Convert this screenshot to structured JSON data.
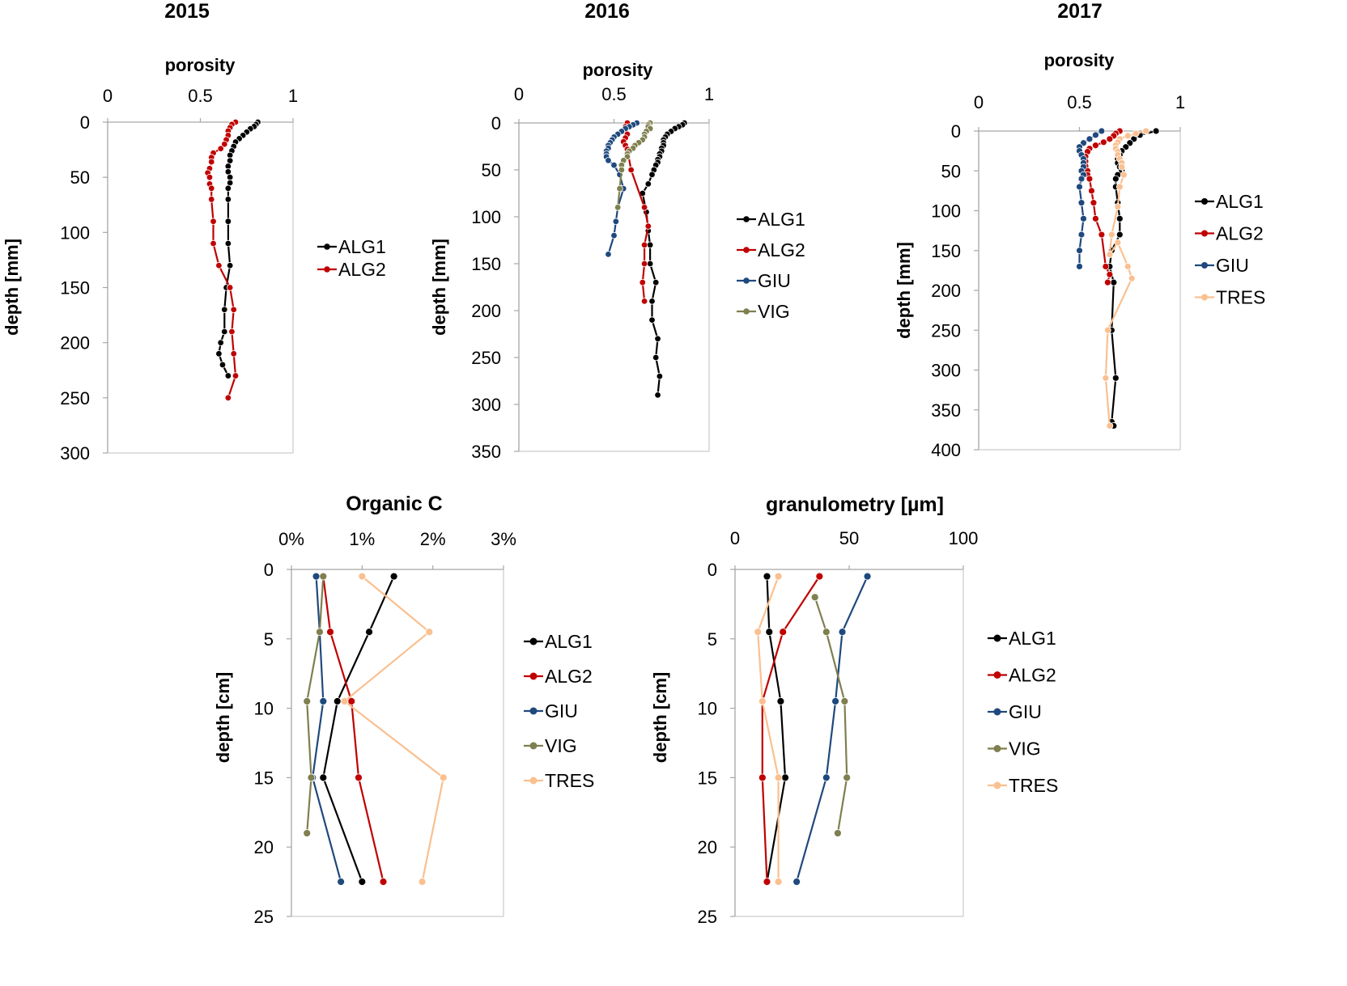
{
  "year_titles": [
    "2015",
    "2016",
    "2017"
  ],
  "chart_data": [
    {
      "type": "line",
      "title": "porosity",
      "xlabel": "porosity",
      "ylabel": "depth [mm]",
      "xlim": [
        0,
        1
      ],
      "xticks": [
        "0",
        "0.5",
        "1"
      ],
      "xtick_values": [
        0,
        0.5,
        1
      ],
      "ylim": [
        0,
        300
      ],
      "yticks": [
        "0",
        "50",
        "100",
        "150",
        "200",
        "250",
        "300"
      ],
      "ytick_values": [
        0,
        50,
        100,
        150,
        200,
        250,
        300
      ],
      "legend_position": "right",
      "series": [
        {
          "name": "ALG1",
          "color": "#000000",
          "x": [
            0.81,
            0.8,
            0.79,
            0.77,
            0.75,
            0.73,
            0.71,
            0.69,
            0.68,
            0.67,
            0.66,
            0.66,
            0.65,
            0.65,
            0.66,
            0.66,
            0.65,
            0.65,
            0.65,
            0.65,
            0.66,
            0.64,
            0.63,
            0.63,
            0.61,
            0.6,
            0.62,
            0.65
          ],
          "y": [
            0,
            2,
            4,
            6,
            9,
            12,
            15,
            18,
            22,
            26,
            30,
            35,
            40,
            45,
            50,
            55,
            60,
            70,
            90,
            110,
            130,
            150,
            170,
            190,
            200,
            210,
            220,
            230
          ]
        },
        {
          "name": "ALG2",
          "color": "#c00000",
          "x": [
            0.69,
            0.67,
            0.66,
            0.65,
            0.65,
            0.64,
            0.63,
            0.61,
            0.57,
            0.56,
            0.56,
            0.55,
            0.54,
            0.55,
            0.55,
            0.56,
            0.56,
            0.57,
            0.57,
            0.6,
            0.66,
            0.68,
            0.67,
            0.68,
            0.69,
            0.65
          ],
          "y": [
            0,
            2,
            5,
            8,
            12,
            16,
            20,
            24,
            28,
            32,
            36,
            42,
            46,
            50,
            56,
            60,
            70,
            90,
            110,
            130,
            150,
            170,
            190,
            210,
            230,
            250
          ]
        }
      ]
    },
    {
      "type": "line",
      "title": "porosity",
      "xlabel": "porosity",
      "ylabel": "depth [mm]",
      "xlim": [
        0,
        1
      ],
      "xticks": [
        "0",
        "0.5",
        "1"
      ],
      "xtick_values": [
        0,
        0.5,
        1
      ],
      "ylim": [
        0,
        350
      ],
      "yticks": [
        "0",
        "50",
        "100",
        "150",
        "200",
        "250",
        "300",
        "350"
      ],
      "ytick_values": [
        0,
        50,
        100,
        150,
        200,
        250,
        300,
        350
      ],
      "legend_position": "right",
      "series": [
        {
          "name": "ALG1",
          "color": "#000000",
          "x": [
            0.87,
            0.86,
            0.84,
            0.82,
            0.8,
            0.78,
            0.77,
            0.76,
            0.76,
            0.76,
            0.75,
            0.75,
            0.74,
            0.74,
            0.73,
            0.73,
            0.72,
            0.71,
            0.7,
            0.68,
            0.65,
            0.67,
            0.68,
            0.69,
            0.69,
            0.72,
            0.7,
            0.7,
            0.73,
            0.72,
            0.74,
            0.73
          ],
          "y": [
            0,
            2,
            4,
            6,
            9,
            12,
            15,
            18,
            21,
            24,
            27,
            30,
            33,
            36,
            39,
            42,
            45,
            50,
            55,
            65,
            75,
            95,
            115,
            130,
            150,
            170,
            190,
            210,
            230,
            250,
            270,
            290
          ]
        },
        {
          "name": "ALG2",
          "color": "#c00000",
          "x": [
            0.57,
            0.56,
            0.56,
            0.57,
            0.56,
            0.55,
            0.56,
            0.57,
            0.59,
            0.66,
            0.68,
            0.66,
            0.66,
            0.65,
            0.66
          ],
          "y": [
            0,
            4,
            8,
            12,
            16,
            20,
            24,
            28,
            50,
            90,
            110,
            130,
            150,
            170,
            190
          ]
        },
        {
          "name": "GIU",
          "color": "#1f497d",
          "x": [
            0.62,
            0.6,
            0.58,
            0.56,
            0.54,
            0.52,
            0.5,
            0.49,
            0.48,
            0.47,
            0.47,
            0.46,
            0.46,
            0.46,
            0.47,
            0.5,
            0.53,
            0.55,
            0.52,
            0.51,
            0.5,
            0.47
          ],
          "y": [
            0,
            2,
            4,
            6,
            9,
            12,
            15,
            18,
            21,
            24,
            27,
            30,
            33,
            36,
            40,
            45,
            55,
            70,
            90,
            105,
            120,
            140
          ]
        },
        {
          "name": "VIG",
          "color": "#7f7f4f",
          "x": [
            0.69,
            0.68,
            0.68,
            0.69,
            0.67,
            0.66,
            0.66,
            0.65,
            0.63,
            0.61,
            0.6,
            0.58,
            0.57,
            0.57,
            0.55,
            0.54,
            0.54,
            0.53,
            0.52
          ],
          "y": [
            0,
            2,
            4,
            6,
            9,
            12,
            15,
            18,
            21,
            24,
            27,
            30,
            33,
            36,
            40,
            45,
            50,
            70,
            90
          ]
        }
      ]
    },
    {
      "type": "line",
      "title": "porosity",
      "xlabel": "porosity",
      "ylabel": "depth [mm]",
      "xlim": [
        0,
        1
      ],
      "xticks": [
        "0",
        "0.5",
        "1"
      ],
      "xtick_values": [
        0,
        0.5,
        1
      ],
      "ylim": [
        0,
        400
      ],
      "yticks": [
        "0",
        "50",
        "100",
        "150",
        "200",
        "250",
        "300",
        "350",
        "400"
      ],
      "ytick_values": [
        0,
        50,
        100,
        150,
        200,
        250,
        300,
        350,
        400
      ],
      "legend_position": "right",
      "series": [
        {
          "name": "ALG1",
          "color": "#000000",
          "x": [
            0.88,
            0.8,
            0.77,
            0.75,
            0.73,
            0.71,
            0.7,
            0.69,
            0.69,
            0.7,
            0.71,
            0.69,
            0.68,
            0.68,
            0.69,
            0.7,
            0.7,
            0.66,
            0.65,
            0.67,
            0.66,
            0.68,
            0.66,
            0.67
          ],
          "y": [
            0,
            5,
            10,
            15,
            20,
            25,
            30,
            35,
            40,
            45,
            50,
            55,
            60,
            70,
            90,
            110,
            130,
            150,
            170,
            190,
            250,
            310,
            365,
            370
          ]
        },
        {
          "name": "ALG2",
          "color": "#c00000",
          "x": [
            0.7,
            0.68,
            0.67,
            0.65,
            0.62,
            0.58,
            0.55,
            0.54,
            0.53,
            0.53,
            0.53,
            0.54,
            0.54,
            0.55,
            0.56,
            0.57,
            0.58,
            0.61,
            0.63,
            0.65,
            0.64
          ],
          "y": [
            0,
            3,
            6,
            10,
            14,
            18,
            22,
            26,
            32,
            38,
            44,
            50,
            55,
            60,
            75,
            90,
            110,
            130,
            170,
            180,
            190
          ]
        },
        {
          "name": "GIU",
          "color": "#1f497d",
          "x": [
            0.61,
            0.58,
            0.55,
            0.52,
            0.5,
            0.5,
            0.51,
            0.52,
            0.52,
            0.52,
            0.51,
            0.52,
            0.51,
            0.5,
            0.51,
            0.52,
            0.51,
            0.5,
            0.5
          ],
          "y": [
            0,
            5,
            10,
            15,
            20,
            25,
            30,
            35,
            40,
            45,
            50,
            55,
            60,
            70,
            90,
            110,
            130,
            150,
            170
          ]
        },
        {
          "name": "TRES",
          "color": "#fac090",
          "x": [
            0.83,
            0.78,
            0.74,
            0.7,
            0.69,
            0.68,
            0.68,
            0.69,
            0.69,
            0.7,
            0.71,
            0.71,
            0.72,
            0.7,
            0.69,
            0.66,
            0.65,
            0.69,
            0.74,
            0.76,
            0.64,
            0.63,
            0.65
          ],
          "y": [
            0,
            3,
            6,
            10,
            14,
            18,
            22,
            26,
            30,
            35,
            40,
            45,
            55,
            70,
            95,
            130,
            155,
            140,
            170,
            185,
            250,
            310,
            370
          ]
        }
      ]
    },
    {
      "type": "line",
      "title": "Organic C",
      "xlabel": "Organic C",
      "ylabel": "depth [cm]",
      "xlim": [
        0,
        3
      ],
      "xticks": [
        "0%",
        "1%",
        "2%",
        "3%"
      ],
      "xtick_values": [
        0,
        1,
        2,
        3
      ],
      "ylim": [
        0,
        25
      ],
      "yticks": [
        "0",
        "5",
        "10",
        "15",
        "20",
        "25"
      ],
      "ytick_values": [
        0,
        5,
        10,
        15,
        20,
        25
      ],
      "legend_position": "right",
      "series": [
        {
          "name": "ALG1",
          "color": "#000000",
          "x": [
            1.45,
            1.1,
            0.65,
            0.45,
            1.0
          ],
          "y": [
            0.5,
            4.5,
            9.5,
            15,
            22.5
          ]
        },
        {
          "name": "ALG2",
          "color": "#c00000",
          "x": [
            0.45,
            0.55,
            0.85,
            0.95,
            1.3
          ],
          "y": [
            0.5,
            4.5,
            9.5,
            15,
            22.5
          ]
        },
        {
          "name": "GIU",
          "color": "#1f497d",
          "x": [
            0.35,
            0.4,
            0.45,
            0.3,
            0.7
          ],
          "y": [
            0.5,
            4.5,
            9.5,
            15,
            22.5
          ]
        },
        {
          "name": "VIG",
          "color": "#7f7f4f",
          "x": [
            0.45,
            0.4,
            0.22,
            0.28,
            0.22
          ],
          "y": [
            0.5,
            4.5,
            9.5,
            15,
            19
          ]
        },
        {
          "name": "TRES",
          "color": "#fac090",
          "x": [
            1.0,
            1.95,
            0.75,
            2.15,
            1.85
          ],
          "y": [
            0.5,
            4.5,
            9.5,
            15,
            22.5
          ]
        }
      ]
    },
    {
      "type": "line",
      "title": "granulometry [µm]",
      "xlabel": "granulometry [µm]",
      "ylabel": "depth [cm]",
      "xlim": [
        0,
        100
      ],
      "xticks": [
        "0",
        "50",
        "100"
      ],
      "xtick_values": [
        0,
        50,
        100
      ],
      "ylim": [
        0,
        25
      ],
      "yticks": [
        "0",
        "5",
        "10",
        "15",
        "20",
        "25"
      ],
      "ytick_values": [
        0,
        5,
        10,
        15,
        20,
        25
      ],
      "legend_position": "right",
      "series": [
        {
          "name": "ALG1",
          "color": "#000000",
          "x": [
            14,
            15,
            20,
            22,
            14
          ],
          "y": [
            0.5,
            4.5,
            9.5,
            15,
            22.5
          ]
        },
        {
          "name": "ALG2",
          "color": "#c00000",
          "x": [
            37,
            21,
            12,
            12,
            14
          ],
          "y": [
            0.5,
            4.5,
            9.5,
            15,
            22.5
          ]
        },
        {
          "name": "GIU",
          "color": "#1f497d",
          "x": [
            58,
            47,
            44,
            40,
            27
          ],
          "y": [
            0.5,
            4.5,
            9.5,
            15,
            22.5
          ]
        },
        {
          "name": "VIG",
          "color": "#7f7f4f",
          "x": [
            35,
            40,
            48,
            49,
            45
          ],
          "y": [
            2,
            4.5,
            9.5,
            15,
            19
          ]
        },
        {
          "name": "TRES",
          "color": "#fac090",
          "x": [
            19,
            10,
            12,
            19,
            19
          ],
          "y": [
            0.5,
            4.5,
            9.5,
            15,
            22.5
          ]
        }
      ]
    }
  ]
}
